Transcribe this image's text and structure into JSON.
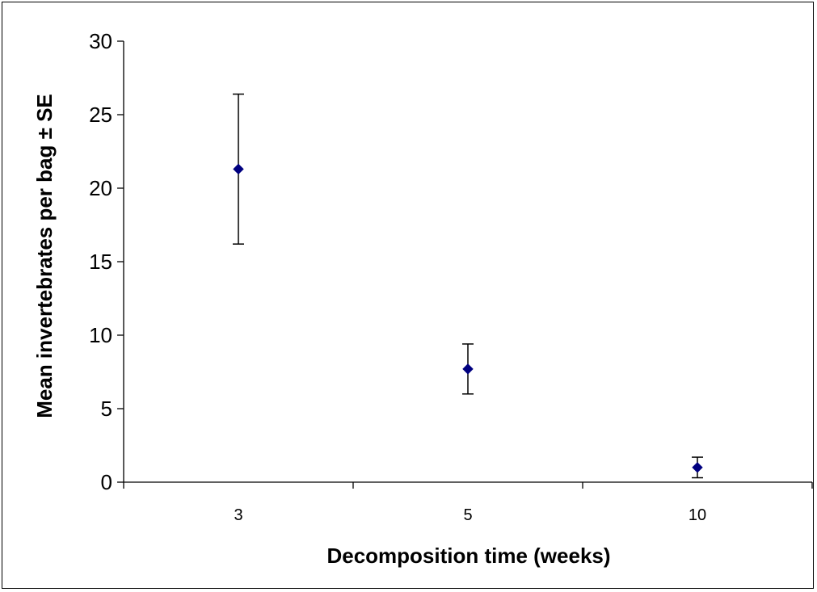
{
  "chart_data": {
    "type": "scatter",
    "title": "",
    "xlabel": "Decomposition time (weeks)",
    "ylabel": "Mean invertebrates per bag ± SE",
    "categories": [
      "3",
      "5",
      "10"
    ],
    "ylim": [
      0,
      30
    ],
    "yticks": [
      "0",
      "5",
      "10",
      "15",
      "20",
      "25",
      "30"
    ],
    "grid": false,
    "legend": "none",
    "series": [
      {
        "values": [
          21.3,
          7.7,
          1.0
        ],
        "se": [
          5.1,
          1.7,
          0.7
        ],
        "marker": "diamond",
        "color": "#000080"
      }
    ]
  }
}
